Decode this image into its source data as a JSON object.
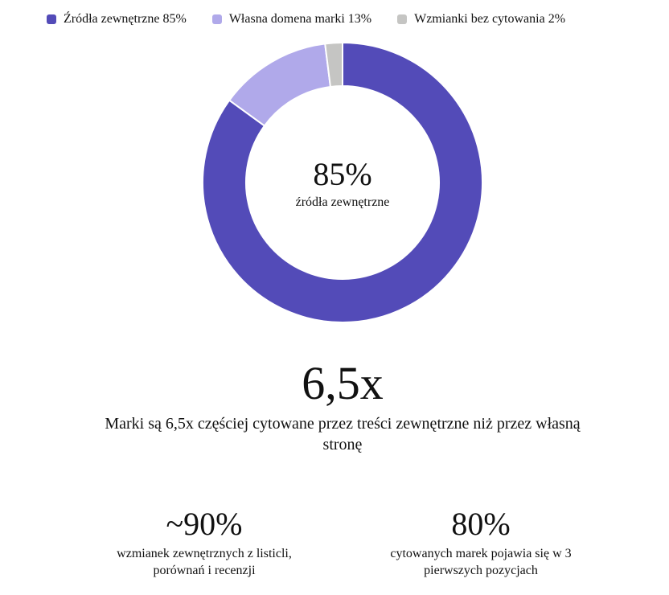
{
  "chart_data": {
    "type": "pie",
    "style": "donut",
    "legend_position": "top",
    "series": [
      {
        "name": "Źródła zewnętrzne 85%",
        "value": 85,
        "color": "#534BB8"
      },
      {
        "name": "Własna domena marki 13%",
        "value": 13,
        "color": "#B0A9EA"
      },
      {
        "name": "Wzmianki bez cytowania 2%",
        "value": 2,
        "color": "#C5C5C3"
      }
    ],
    "center_value": "85%",
    "center_label": "źródła zewnętrzne"
  },
  "highlight": {
    "value": "6,5x",
    "description": "Marki są 6,5x częściej cytowane przez treści zewnętrzne niż przez własną stronę"
  },
  "stats": [
    {
      "value": "~90%",
      "description": "wzmianek zewnętrznych z listicli, porównań i recenzji"
    },
    {
      "value": "80%",
      "description": "cytowanych marek pojawia się w 3 pierwszych pozycjach"
    }
  ]
}
